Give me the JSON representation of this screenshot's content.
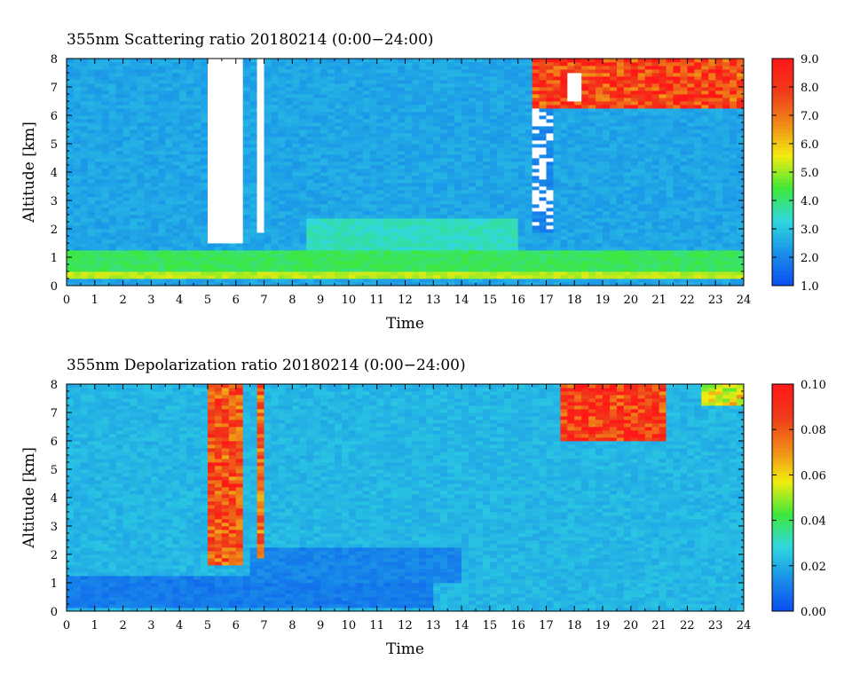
{
  "colors": {
    "colormap": [
      "#0a4cf0",
      "#1a8fe8",
      "#2fd8e0",
      "#3fe83a",
      "#f2ec10",
      "#f08818",
      "#ef3a1a",
      "#ff1818"
    ],
    "saturated_high": "#ffffff",
    "axis": "#000000"
  },
  "chart_data": [
    {
      "type": "heatmap",
      "title": "355nm Scattering ratio  20180214 (0:00−24:00)",
      "xlabel": "Time",
      "ylabel": "Altitude [km]",
      "xlim": [
        0,
        24
      ],
      "ylim": [
        0,
        8
      ],
      "x_ticks": [
        "0",
        "1",
        "2",
        "3",
        "4",
        "5",
        "6",
        "7",
        "8",
        "9",
        "10",
        "11",
        "12",
        "13",
        "14",
        "15",
        "16",
        "17",
        "18",
        "19",
        "20",
        "21",
        "22",
        "23",
        "24"
      ],
      "y_ticks": [
        "0",
        "1",
        "2",
        "3",
        "4",
        "5",
        "6",
        "7",
        "8"
      ],
      "colorbar": {
        "range": [
          1.0,
          9.0
        ],
        "ticks": [
          "1.0",
          "2.0",
          "3.0",
          "4.0",
          "5.0",
          "6.0",
          "7.0",
          "8.0",
          "9.0"
        ]
      },
      "background_value": 2.5,
      "features": [
        {
          "kind": "layer",
          "x": [
            0,
            24
          ],
          "y": [
            0.45,
            1.3
          ],
          "value": 4.2,
          "label": "boundary layer"
        },
        {
          "kind": "layer",
          "x": [
            8.5,
            16
          ],
          "y": [
            1.3,
            2.4
          ],
          "value": 3.5,
          "label": "aerosol layer"
        },
        {
          "kind": "layer",
          "x": [
            0,
            24
          ],
          "y": [
            0.2,
            0.45
          ],
          "value": 5.2,
          "label": "surface layer"
        },
        {
          "kind": "saturated_column",
          "x": [
            5.1,
            6.2
          ],
          "y": [
            1.5,
            8.0
          ],
          "label": "low cloud"
        },
        {
          "kind": "saturated_column",
          "x": [
            6.75,
            6.95
          ],
          "y": [
            1.85,
            8.0
          ],
          "label": "low cloud"
        },
        {
          "kind": "speckle_column",
          "x": [
            13.9,
            14.1
          ],
          "y": [
            2.2,
            7.7
          ],
          "label": "precipitation"
        },
        {
          "kind": "speckle_column",
          "x": [
            16.6,
            17.3
          ],
          "y": [
            1.9,
            6.3
          ],
          "label": "precipitation"
        },
        {
          "kind": "cloud",
          "x": [
            16.5,
            24
          ],
          "y": [
            6.2,
            8.0
          ],
          "value": 8.2,
          "label": "cirrus"
        },
        {
          "kind": "saturated_patch",
          "x": [
            17.7,
            18.3
          ],
          "y": [
            6.5,
            7.5
          ],
          "label": "cirrus core"
        }
      ]
    },
    {
      "type": "heatmap",
      "title": "355nm Depolarization ratio  20180214 (0:00−24:00)",
      "xlabel": "Time",
      "ylabel": "Altitude [km]",
      "xlim": [
        0,
        24
      ],
      "ylim": [
        0,
        8
      ],
      "x_ticks": [
        "0",
        "1",
        "2",
        "3",
        "4",
        "5",
        "6",
        "7",
        "8",
        "9",
        "10",
        "11",
        "12",
        "13",
        "14",
        "15",
        "16",
        "17",
        "18",
        "19",
        "20",
        "21",
        "22",
        "23",
        "24"
      ],
      "y_ticks": [
        "0",
        "1",
        "2",
        "3",
        "4",
        "5",
        "6",
        "7",
        "8"
      ],
      "colorbar": {
        "range": [
          0.0,
          0.1
        ],
        "ticks": [
          "0.00",
          "0.02",
          "0.04",
          "0.06",
          "0.08",
          "0.10"
        ]
      },
      "background_value": 0.022,
      "features": [
        {
          "kind": "layer",
          "x": [
            0,
            13
          ],
          "y": [
            0.1,
            1.2
          ],
          "value": 0.01,
          "label": "boundary layer"
        },
        {
          "kind": "layer",
          "x": [
            6.5,
            14
          ],
          "y": [
            1.0,
            2.3
          ],
          "value": 0.012,
          "label": "aerosol layer"
        },
        {
          "kind": "noisy_column",
          "x": [
            5.1,
            6.2
          ],
          "y": [
            1.6,
            8.0
          ],
          "value": 0.085,
          "label": "cloud column"
        },
        {
          "kind": "noisy_column",
          "x": [
            6.75,
            6.95
          ],
          "y": [
            1.9,
            8.0
          ],
          "value": 0.08,
          "label": "cloud column"
        },
        {
          "kind": "cloud",
          "x": [
            17.5,
            21.3
          ],
          "y": [
            6.0,
            8.0
          ],
          "value": 0.09,
          "label": "cirrus"
        },
        {
          "kind": "cloud",
          "x": [
            22.5,
            24
          ],
          "y": [
            7.2,
            8.0
          ],
          "value": 0.06,
          "label": "cirrus"
        }
      ]
    }
  ]
}
